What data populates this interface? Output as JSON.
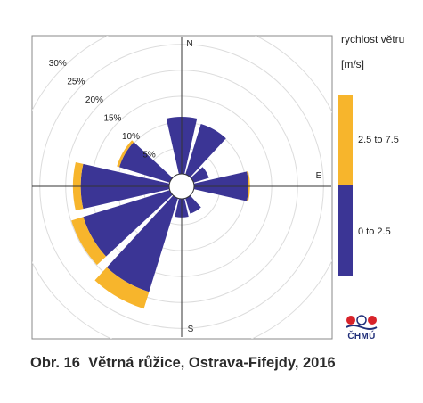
{
  "chart_data": {
    "type": "wind-rose",
    "legend_title": [
      "rychlost větru",
      "[m/s]"
    ],
    "directions": [
      "N",
      "E",
      "S"
    ],
    "radial_ticks": [
      "5%",
      "10%",
      "15%",
      "20%",
      "25%",
      "30%"
    ],
    "radial_tick_values": [
      5,
      10,
      15,
      20,
      25,
      30
    ],
    "rmax": 32,
    "sector_width_deg": 30,
    "series": [
      {
        "name": "0 to 2.5",
        "color": "#3b3595"
      },
      {
        "name": "2.5 to 7.5",
        "color": "#f7b52c"
      }
    ],
    "sectors": [
      {
        "direction_deg": 0,
        "values": [
          11.0,
          0.0
        ]
      },
      {
        "direction_deg": 30,
        "values": [
          10.2,
          0.0
        ]
      },
      {
        "direction_deg": 60,
        "values": [
          3.1,
          0.0
        ]
      },
      {
        "direction_deg": 90,
        "values": [
          10.5,
          0.3
        ]
      },
      {
        "direction_deg": 120,
        "values": [
          0.0,
          0.0
        ]
      },
      {
        "direction_deg": 150,
        "values": [
          3.1,
          0.0
        ]
      },
      {
        "direction_deg": 180,
        "values": [
          3.6,
          0.0
        ]
      },
      {
        "direction_deg": 210,
        "values": [
          18.9,
          3.4
        ]
      },
      {
        "direction_deg": 240,
        "values": [
          17.5,
          2.4
        ]
      },
      {
        "direction_deg": 270,
        "values": [
          17.1,
          1.5
        ]
      },
      {
        "direction_deg": 300,
        "values": [
          10.2,
          0.5
        ]
      },
      {
        "direction_deg": 330,
        "values": [
          0.0,
          0.0
        ]
      }
    ]
  },
  "caption": {
    "label": "Obr. 16",
    "text": "Větrná růžice, Ostrava-Fifejdy, 2016"
  },
  "logo_text": "ČHMÚ",
  "colors": {
    "calm_circle": "#ffffff",
    "grid": "#dcdcdc",
    "axis": "#333333"
  }
}
